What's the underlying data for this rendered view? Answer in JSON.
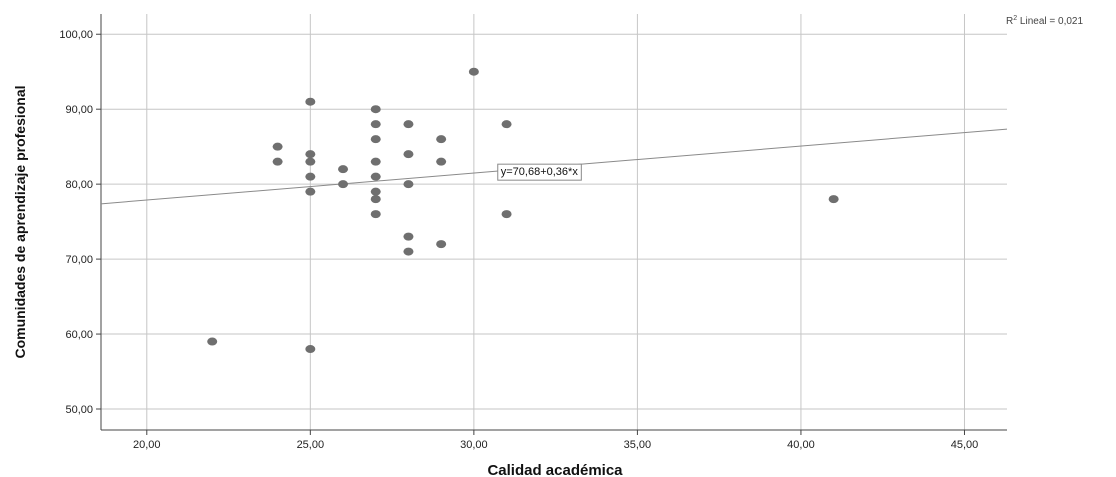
{
  "chart_data": {
    "type": "scatter",
    "xlabel": "Calidad académica",
    "ylabel": "Comunidades de aprendizaje profesional",
    "xlim": [
      18.6,
      46.3
    ],
    "ylim": [
      47.2,
      102.7
    ],
    "x_ticks": [
      20,
      25,
      30,
      35,
      40,
      45
    ],
    "y_ticks": [
      50,
      60,
      70,
      80,
      90,
      100
    ],
    "x_tick_labels": [
      "20,00",
      "25,00",
      "30,00",
      "35,00",
      "40,00",
      "45,00"
    ],
    "y_tick_labels": [
      "50,00",
      "60,00",
      "70,00",
      "80,00",
      "90,00",
      "100,00"
    ],
    "grid": true,
    "points_color": "#6f6f6f",
    "points": [
      {
        "x": 22,
        "y": 59
      },
      {
        "x": 24,
        "y": 85
      },
      {
        "x": 24,
        "y": 83
      },
      {
        "x": 25,
        "y": 91
      },
      {
        "x": 25,
        "y": 84
      },
      {
        "x": 25,
        "y": 83
      },
      {
        "x": 25,
        "y": 81
      },
      {
        "x": 25,
        "y": 79
      },
      {
        "x": 25,
        "y": 58
      },
      {
        "x": 26,
        "y": 82
      },
      {
        "x": 26,
        "y": 80
      },
      {
        "x": 27,
        "y": 90
      },
      {
        "x": 27,
        "y": 88
      },
      {
        "x": 27,
        "y": 86
      },
      {
        "x": 27,
        "y": 83
      },
      {
        "x": 27,
        "y": 81
      },
      {
        "x": 27,
        "y": 79
      },
      {
        "x": 27,
        "y": 78
      },
      {
        "x": 27,
        "y": 76
      },
      {
        "x": 28,
        "y": 88
      },
      {
        "x": 28,
        "y": 84
      },
      {
        "x": 28,
        "y": 80
      },
      {
        "x": 28,
        "y": 73
      },
      {
        "x": 28,
        "y": 71
      },
      {
        "x": 29,
        "y": 86
      },
      {
        "x": 29,
        "y": 83
      },
      {
        "x": 29,
        "y": 72
      },
      {
        "x": 30,
        "y": 95
      },
      {
        "x": 31,
        "y": 88
      },
      {
        "x": 31,
        "y": 76
      },
      {
        "x": 41,
        "y": 78
      }
    ],
    "fit_line": {
      "intercept": 70.68,
      "slope": 0.36,
      "label": "y=70,68+0,36*x",
      "label_at_x": 30.7
    },
    "r2_prefix": "R",
    "r2_sup": "2",
    "r2_text": " Lineal = 0,021"
  }
}
